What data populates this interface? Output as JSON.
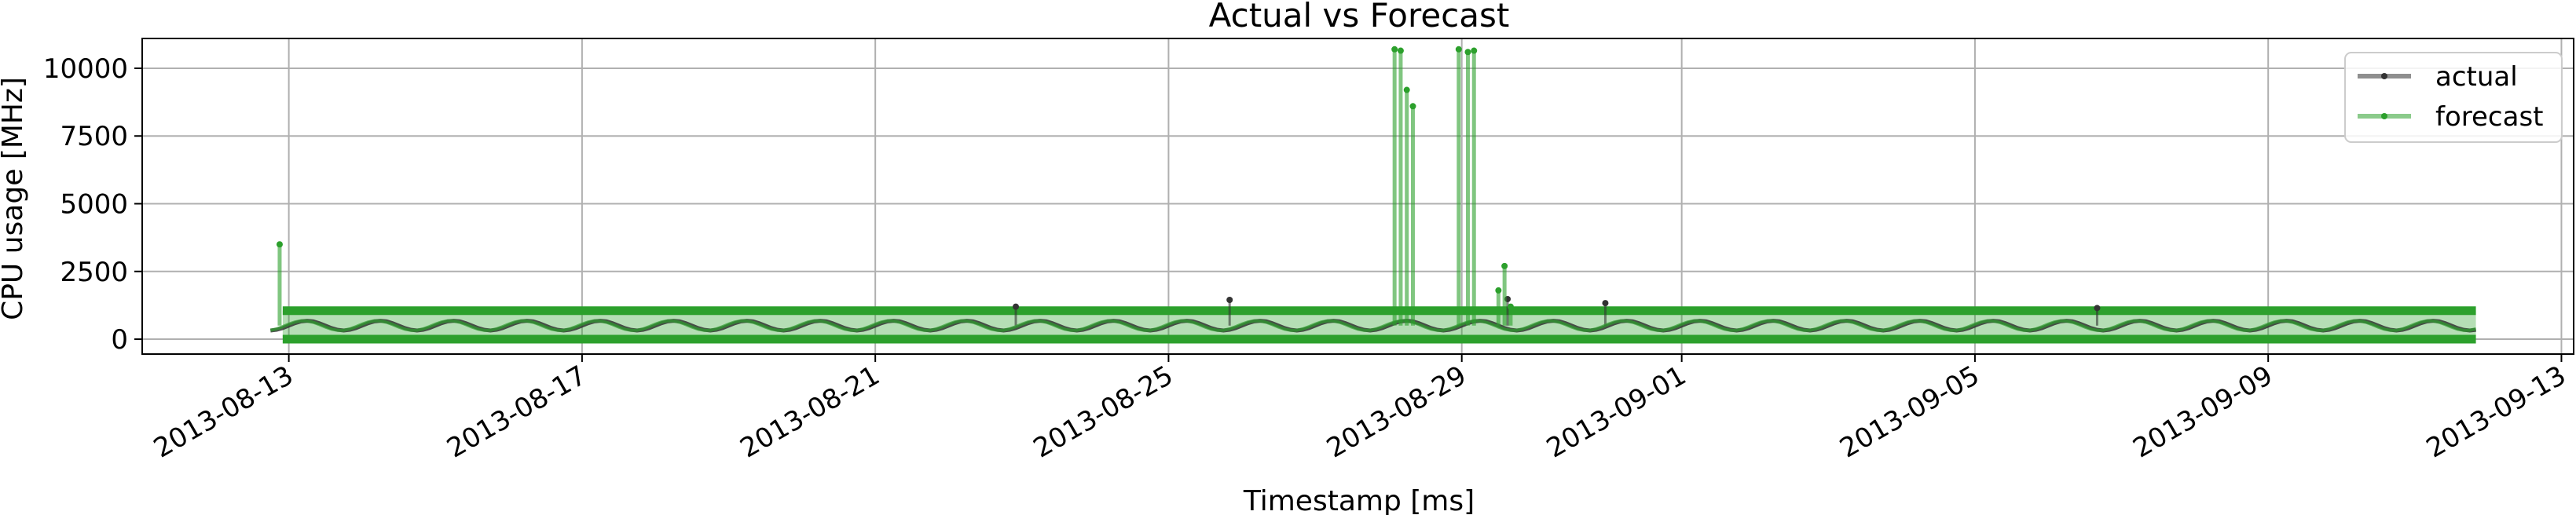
{
  "chart_data": {
    "type": "line",
    "title": "Actual vs Forecast",
    "xlabel": "Timestamp [ms]",
    "ylabel": "CPU usage [MHz]",
    "x_ticks": [
      "2013-08-13",
      "2013-08-17",
      "2013-08-21",
      "2013-08-25",
      "2013-08-29",
      "2013-09-01",
      "2013-09-05",
      "2013-09-09",
      "2013-09-13"
    ],
    "y_ticks": [
      0,
      2500,
      5000,
      7500,
      10000
    ],
    "ylim": [
      -550,
      11100
    ],
    "xlim": [
      "2013-08-11T00:00",
      "2013-09-13T04:00"
    ],
    "grid": true,
    "legend_position": "top-right",
    "band": {
      "low": 0,
      "high": 1050,
      "start": "2013-08-12T22:00",
      "end": "2013-09-11T20:00"
    },
    "series": [
      {
        "name": "actual",
        "color": "#333333",
        "baseline": 500,
        "amplitude": 180,
        "start": "2013-08-12T18:00",
        "end": "2013-09-11T20:00",
        "spikes": [
          {
            "x": "2013-08-22T22:00",
            "y": 1200
          },
          {
            "x": "2013-08-25T20:00",
            "y": 1450
          },
          {
            "x": "2013-08-29T15:00",
            "y": 1480
          },
          {
            "x": "2013-08-30T23:00",
            "y": 1330
          },
          {
            "x": "2013-09-06T16:00",
            "y": 1150
          }
        ]
      },
      {
        "name": "forecast",
        "color": "#2ca02c",
        "baseline": 500,
        "amplitude": 180,
        "start": "2013-08-12T18:00",
        "end": "2013-09-11T20:00",
        "spikes": [
          {
            "x": "2013-08-12T21:00",
            "y": 3500
          },
          {
            "x": "2013-08-28T02:00",
            "y": 10700
          },
          {
            "x": "2013-08-28T04:00",
            "y": 10650
          },
          {
            "x": "2013-08-28T06:00",
            "y": 9200
          },
          {
            "x": "2013-08-28T08:00",
            "y": 8600
          },
          {
            "x": "2013-08-28T23:00",
            "y": 10700
          },
          {
            "x": "2013-08-29T02:00",
            "y": 10600
          },
          {
            "x": "2013-08-29T04:00",
            "y": 10650
          },
          {
            "x": "2013-08-29T12:00",
            "y": 1800
          },
          {
            "x": "2013-08-29T14:00",
            "y": 2700
          },
          {
            "x": "2013-08-29T16:00",
            "y": 1200
          }
        ]
      }
    ]
  }
}
